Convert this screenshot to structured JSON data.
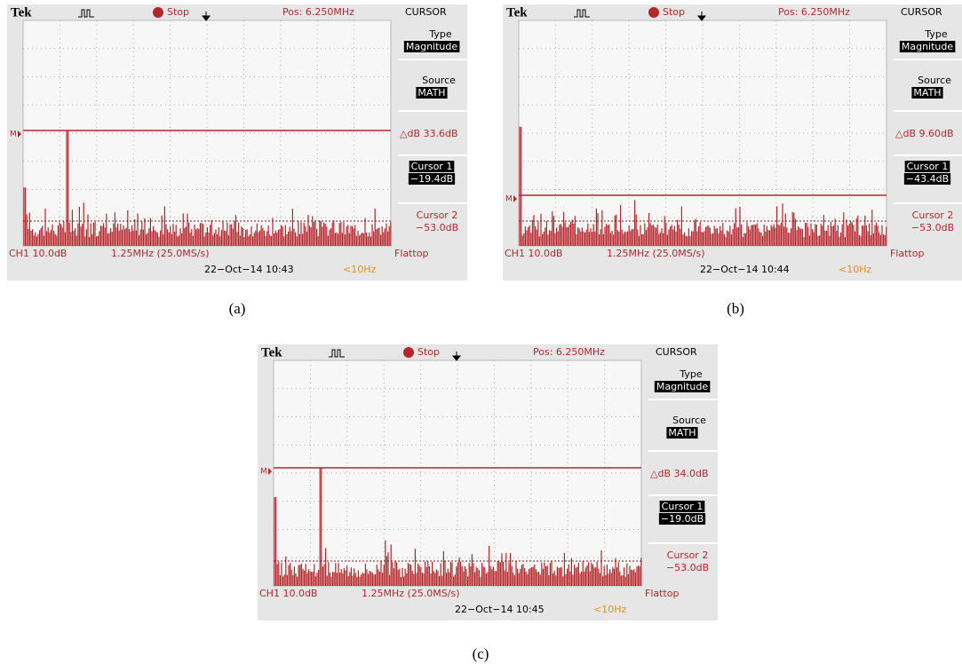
{
  "panels": [
    {
      "header": {
        "brand": "Tek",
        "status": "Stop",
        "position": "Pos: 6.250MHz",
        "mode": "CURSOR"
      },
      "marker": "M",
      "menu": {
        "type_label": "Type",
        "type_value": "Magnitude",
        "source_label": "Source",
        "source_value": "MATH",
        "delta": "△dB 33.6dB",
        "cursor1_label": "Cursor 1",
        "cursor1_value": "−19.4dB",
        "cursor2_label": "Cursor 2",
        "cursor2_value": "−53.0dB",
        "window": "Flattop"
      },
      "footer": {
        "channel": "CH1 10.0dB",
        "scale": "1.25MHz (25.0MS/s)",
        "date": "22−Oct−14 10:43",
        "trigger": "<10Hz"
      },
      "caption": "(a)"
    },
    {
      "header": {
        "brand": "Tek",
        "status": "Stop",
        "position": "Pos: 6.250MHz",
        "mode": "CURSOR"
      },
      "marker": "M",
      "menu": {
        "type_label": "Type",
        "type_value": "Magnitude",
        "source_label": "Source",
        "source_value": "MATH",
        "delta": "△dB 9.60dB",
        "cursor1_label": "Cursor 1",
        "cursor1_value": "−43.4dB",
        "cursor2_label": "Cursor 2",
        "cursor2_value": "−53.0dB",
        "window": "Flattop"
      },
      "footer": {
        "channel": "CH1 10.0dB",
        "scale": "1.25MHz (25.0MS/s)",
        "date": "22−Oct−14 10:44",
        "trigger": "<10Hz"
      },
      "caption": "(b)"
    },
    {
      "header": {
        "brand": "Tek",
        "status": "Stop",
        "position": "Pos: 6.250MHz",
        "mode": "CURSOR"
      },
      "marker": "M",
      "menu": {
        "type_label": "Type",
        "type_value": "Magnitude",
        "source_label": "Source",
        "source_value": "MATH",
        "delta": "△dB 34.0dB",
        "cursor1_label": "Cursor 1",
        "cursor1_value": "−19.0dB",
        "cursor2_label": "Cursor 2",
        "cursor2_value": "−53.0dB",
        "window": "Flattop"
      },
      "footer": {
        "channel": "CH1 10.0dB",
        "scale": "1.25MHz (25.0MS/s)",
        "date": "22−Oct−14 10:45",
        "trigger": "<10Hz"
      },
      "caption": "(c)"
    }
  ]
}
